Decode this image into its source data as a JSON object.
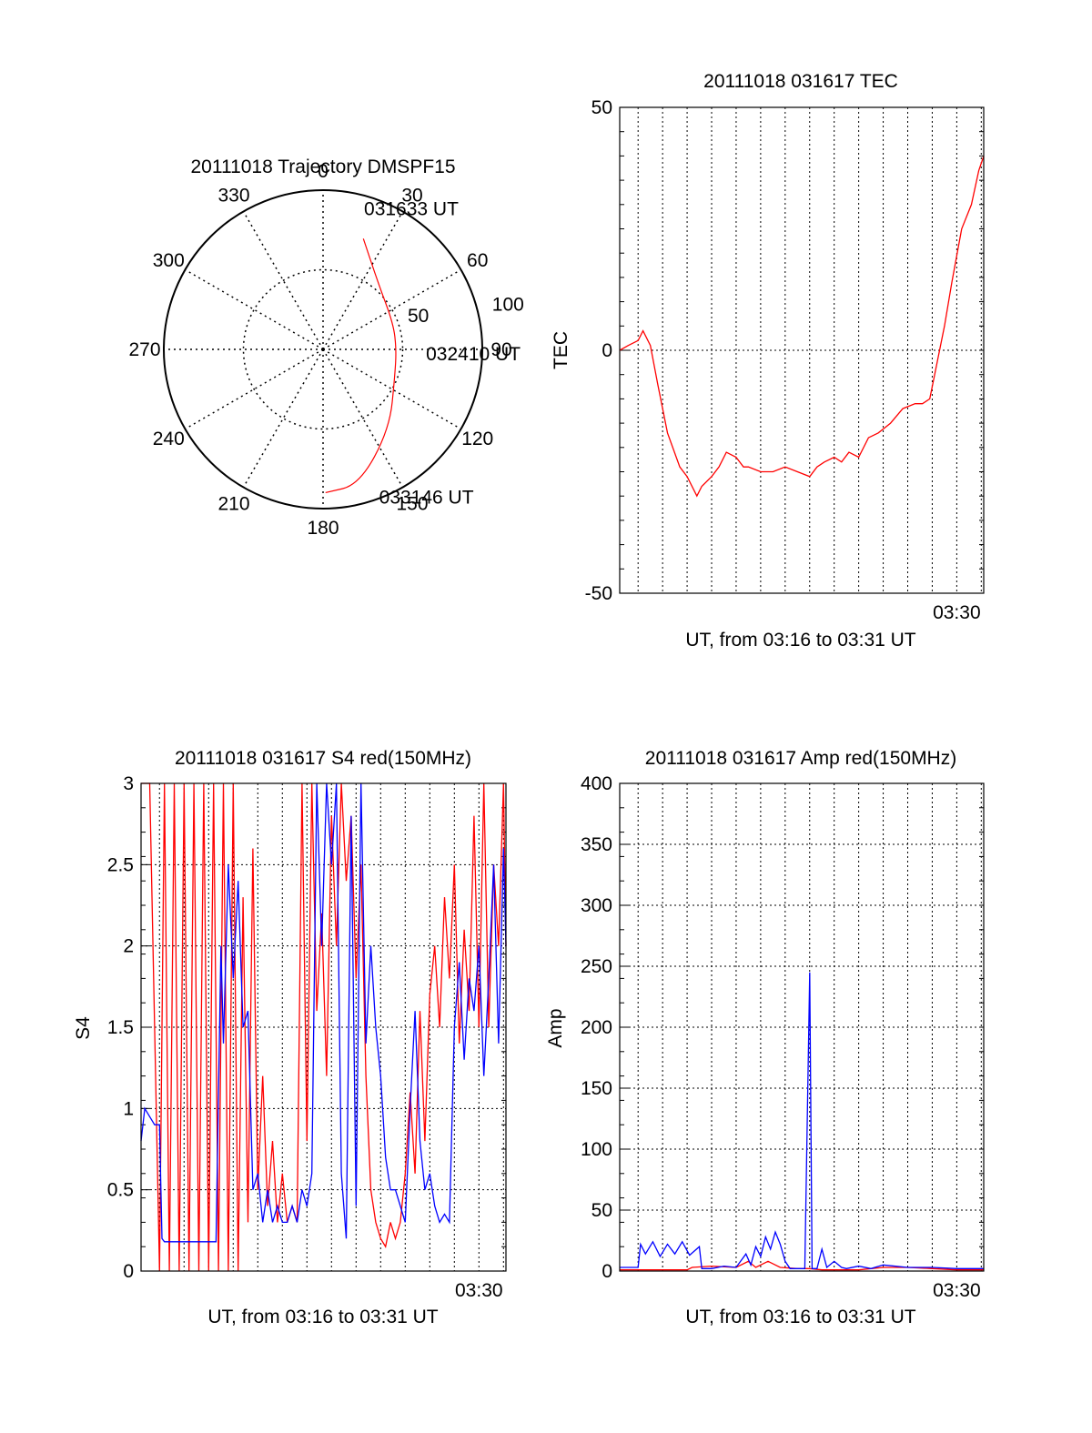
{
  "colors": {
    "red": "#ff0000",
    "blue": "#0000ff",
    "axis": "#000000",
    "grid": "#000000"
  },
  "chart_data": [
    {
      "type": "polar",
      "title": "20111018 Trajectory DMSPF15",
      "angle_labels": [
        "0",
        "30",
        "60",
        "90",
        "120",
        "150",
        "180",
        "210",
        "240",
        "270",
        "300",
        "330"
      ],
      "radius_labels": [
        "50",
        "100"
      ],
      "rlim": [
        0,
        100
      ],
      "grid": true,
      "trajectory": {
        "color": "red",
        "points": [
          {
            "az": 20,
            "r": 74
          },
          {
            "az": 40,
            "r": 54
          },
          {
            "az": 70,
            "r": 47
          },
          {
            "az": 90,
            "r": 46
          },
          {
            "az": 110,
            "r": 48
          },
          {
            "az": 140,
            "r": 65
          },
          {
            "az": 165,
            "r": 88
          },
          {
            "az": 179,
            "r": 90
          }
        ]
      },
      "annotations": [
        {
          "text": "031633 UT",
          "az": 17,
          "r": 88
        },
        {
          "text": "032410 UT",
          "az": 96,
          "r": 65
        },
        {
          "text": "033146 UT",
          "az": 160,
          "r": 103
        }
      ]
    },
    {
      "type": "line",
      "title": "20111018 031617 TEC",
      "ylabel": "TEC",
      "xlabel": "UT, from 03:16 to 03:31 UT",
      "xlim": [
        16.25,
        31.1
      ],
      "ylim": [
        -50,
        50
      ],
      "yticks": [
        "50",
        "0",
        "-50"
      ],
      "xticks": [
        {
          "value": 30,
          "label": "03:30"
        }
      ],
      "grid": true,
      "series": [
        {
          "color": "red",
          "x": [
            16.25,
            16.6,
            17.0,
            17.2,
            17.5,
            17.8,
            18.2,
            18.7,
            19.0,
            19.4,
            19.6,
            20.0,
            20.3,
            20.6,
            21.0,
            21.3,
            21.5,
            22.0,
            22.5,
            23.0,
            23.5,
            24.0,
            24.3,
            24.6,
            25.0,
            25.3,
            25.6,
            26.0,
            26.4,
            26.8,
            27.3,
            27.8,
            28.3,
            28.6,
            28.9,
            29.1,
            29.5,
            29.8,
            30.2,
            30.6,
            30.9,
            31.1
          ],
          "y": [
            0,
            1,
            2,
            4,
            1,
            -7,
            -17,
            -24,
            -26,
            -30,
            -28,
            -26,
            -24,
            -21,
            -22,
            -24,
            -24,
            -25,
            -25,
            -24,
            -25,
            -26,
            -24,
            -23,
            -22,
            -23,
            -21,
            -22,
            -18,
            -17,
            -15,
            -12,
            -11,
            -11,
            -10,
            -5,
            5,
            14,
            25,
            30,
            37,
            40
          ]
        }
      ]
    },
    {
      "type": "line",
      "title": "20111018 031617 S4 red(150MHz)",
      "ylabel": "S4",
      "xlabel": "UT, from 03:16 to 03:31 UT",
      "xlim": [
        16.25,
        31.1
      ],
      "ylim": [
        0,
        3
      ],
      "yticks": [
        "0",
        "0.5",
        "1",
        "1.5",
        "2",
        "2.5",
        "3"
      ],
      "xticks": [
        {
          "value": 30,
          "label": "03:30"
        }
      ],
      "grid": true,
      "series": [
        {
          "color": "red",
          "x": [
            16.25,
            16.6,
            17.0,
            17.2,
            17.4,
            17.6,
            17.8,
            18.0,
            18.2,
            18.4,
            18.6,
            18.8,
            19.0,
            19.2,
            19.4,
            19.6,
            19.8,
            20.0,
            20.2,
            20.4,
            20.6,
            20.8,
            21.0,
            21.2,
            21.4,
            21.6,
            21.8,
            22.0,
            22.2,
            22.4,
            22.6,
            22.8,
            23.0,
            23.2,
            23.4,
            23.6,
            23.8,
            24.0,
            24.2,
            24.4,
            24.6,
            24.8,
            25.0,
            25.2,
            25.4,
            25.6,
            25.8,
            26.0,
            26.2,
            26.4,
            26.6,
            26.8,
            27.0,
            27.2,
            27.4,
            27.6,
            27.8,
            28.0,
            28.2,
            28.4,
            28.6,
            28.8,
            29.0,
            29.2,
            29.4,
            29.6,
            29.8,
            30.0,
            30.2,
            30.4,
            30.6,
            30.8,
            31.0,
            31.1
          ],
          "y": [
            3,
            3,
            0,
            3,
            0,
            3,
            0,
            3,
            0,
            3,
            0,
            3,
            0,
            3,
            0,
            3,
            0,
            3,
            0,
            2.3,
            0.3,
            2.6,
            0.5,
            1.2,
            0.4,
            0.8,
            0.3,
            0.6,
            0.3,
            0.4,
            0.3,
            3,
            0.8,
            3,
            1.6,
            2.2,
            1.2,
            2.8,
            2.0,
            3,
            2.4,
            2.8,
            1.8,
            2.5,
            1.2,
            0.5,
            0.3,
            0.2,
            0.15,
            0.3,
            0.2,
            0.3,
            0.6,
            1.1,
            0.6,
            1.6,
            0.8,
            1.7,
            2.0,
            1.5,
            2.3,
            1.8,
            2.5,
            1.4,
            2.1,
            1.6,
            2.8,
            1.5,
            3,
            1.5,
            2.5,
            2.0,
            3,
            2.0
          ]
        },
        {
          "color": "blue",
          "x": [
            16.25,
            16.4,
            16.6,
            16.8,
            17.0,
            17.1,
            17.2,
            17.5,
            18.0,
            18.5,
            19.0,
            19.3,
            19.5,
            19.6,
            19.8,
            20.0,
            20.2,
            20.4,
            20.6,
            20.8,
            21.0,
            21.2,
            21.4,
            21.6,
            21.8,
            22.0,
            22.2,
            22.4,
            22.6,
            22.8,
            23.0,
            23.2,
            23.4,
            23.6,
            23.8,
            24.0,
            24.2,
            24.4,
            24.6,
            24.8,
            25.0,
            25.2,
            25.4,
            25.6,
            25.8,
            26.0,
            26.2,
            26.4,
            26.6,
            26.8,
            27.0,
            27.2,
            27.4,
            27.6,
            27.8,
            28.0,
            28.2,
            28.4,
            28.6,
            28.8,
            29.0,
            29.2,
            29.4,
            29.6,
            29.8,
            30.0,
            30.2,
            30.4,
            30.6,
            30.8,
            31.0,
            31.1
          ],
          "y": [
            0.8,
            1.0,
            0.95,
            0.9,
            0.9,
            0.2,
            0.18,
            0.18,
            0.18,
            0.18,
            0.18,
            0.18,
            2.0,
            1.4,
            2.5,
            1.8,
            2.4,
            1.5,
            1.6,
            0.5,
            0.6,
            0.3,
            0.5,
            0.3,
            0.4,
            0.3,
            0.3,
            0.4,
            0.3,
            0.5,
            0.4,
            0.6,
            3,
            2.0,
            3,
            2.5,
            3,
            0.6,
            0.2,
            2.8,
            0.4,
            3,
            1.4,
            2.0,
            1.5,
            1.2,
            0.7,
            0.5,
            0.5,
            0.4,
            0.3,
            1.0,
            1.6,
            0.8,
            0.5,
            0.6,
            0.4,
            0.3,
            0.35,
            0.3,
            1.5,
            1.9,
            1.3,
            1.8,
            1.6,
            2.0,
            1.2,
            1.8,
            2.5,
            1.4,
            2.6,
            2.0
          ]
        }
      ]
    },
    {
      "type": "line",
      "title": "20111018 031617 Amp red(150MHz)",
      "ylabel": "Amp",
      "xlabel": "UT, from 03:16 to 03:31 UT",
      "xlim": [
        16.25,
        31.1
      ],
      "ylim": [
        0,
        400
      ],
      "yticks": [
        "0",
        "50",
        "100",
        "150",
        "200",
        "250",
        "300",
        "350",
        "400"
      ],
      "xticks": [
        {
          "value": 30,
          "label": "03:30"
        }
      ],
      "grid": true,
      "series": [
        {
          "color": "red",
          "x": [
            16.25,
            18.0,
            19.0,
            19.2,
            20.0,
            21.0,
            21.5,
            21.8,
            22.3,
            22.8,
            23.5,
            24.0,
            24.5,
            25.0,
            26.0,
            27.0,
            28.0,
            29.0,
            30.0,
            31.1
          ],
          "y": [
            1,
            1,
            1,
            3,
            4,
            3,
            8,
            3,
            8,
            3,
            2,
            2,
            1,
            1,
            1,
            3,
            3,
            2,
            1,
            1
          ]
        },
        {
          "color": "blue",
          "x": [
            16.25,
            17.0,
            17.1,
            17.3,
            17.6,
            17.9,
            18.2,
            18.5,
            18.8,
            19.1,
            19.5,
            19.6,
            20.0,
            20.5,
            21.0,
            21.4,
            21.6,
            21.8,
            22.0,
            22.2,
            22.4,
            22.6,
            22.8,
            23.0,
            23.2,
            23.4,
            23.6,
            23.8,
            24.0,
            24.1,
            24.2,
            24.3,
            24.5,
            24.7,
            25.0,
            25.3,
            25.5,
            26.0,
            26.5,
            27.0,
            28.0,
            29.0,
            30.0,
            31.1
          ],
          "y": [
            3,
            3,
            22,
            14,
            24,
            12,
            22,
            14,
            24,
            13,
            20,
            2,
            2,
            4,
            3,
            14,
            5,
            20,
            12,
            28,
            18,
            32,
            22,
            8,
            2,
            2,
            2,
            2,
            245,
            2,
            2,
            2,
            18,
            3,
            8,
            3,
            2,
            4,
            2,
            5,
            3,
            3,
            2,
            2
          ]
        }
      ]
    }
  ]
}
